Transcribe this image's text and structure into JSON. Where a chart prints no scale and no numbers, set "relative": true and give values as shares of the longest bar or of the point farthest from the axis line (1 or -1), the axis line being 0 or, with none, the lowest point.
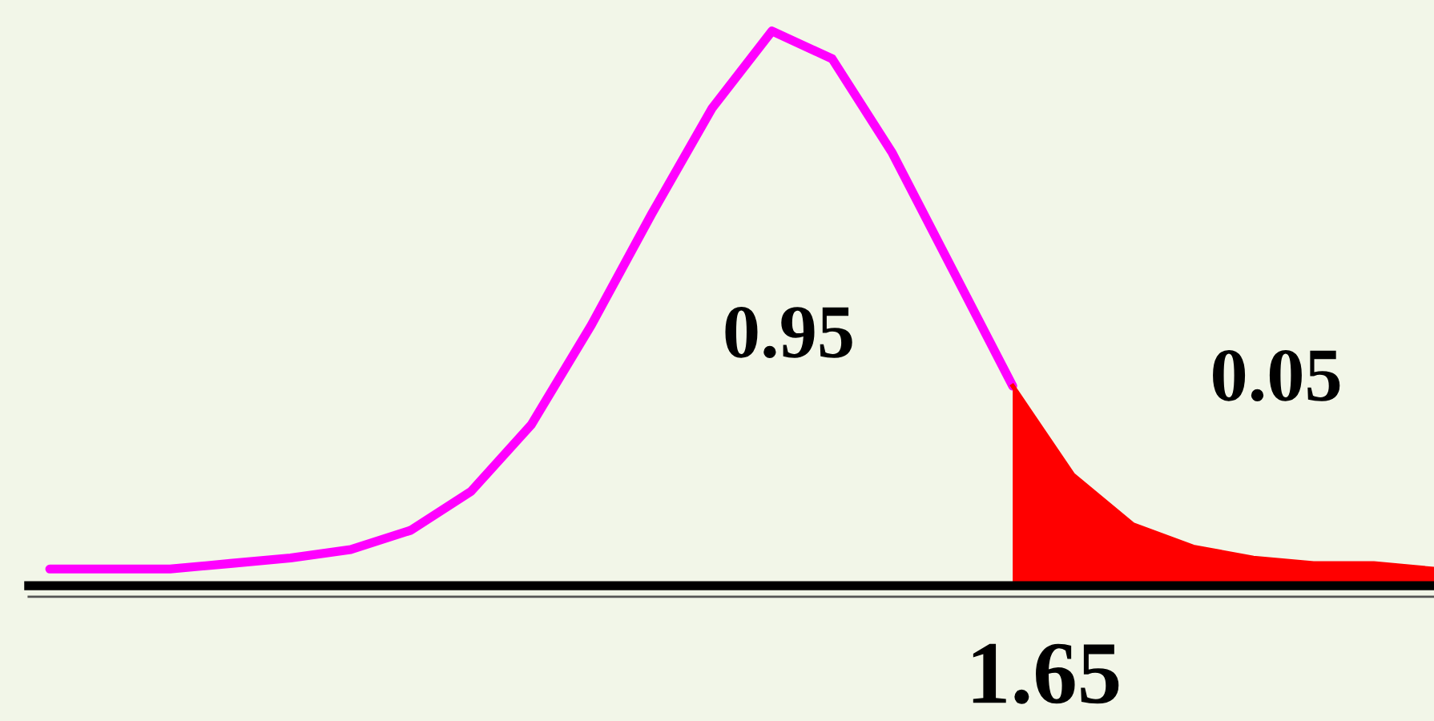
{
  "chart_data": {
    "type": "line",
    "relative": true,
    "categories": [
      null,
      null,
      null,
      null,
      null,
      null,
      null,
      null,
      null,
      null,
      null,
      null,
      null,
      null,
      null,
      null,
      null,
      null,
      null,
      null,
      null,
      null,
      null,
      null
    ],
    "grid": false,
    "legend": false,
    "series": [
      {
        "color": "#ff00ff",
        "values": [
          0.03,
          0.03,
          0.03,
          0.04,
          0.05,
          0.065,
          0.1,
          0.17,
          0.29,
          0.47,
          0.67,
          0.86,
          1.0,
          0.95,
          0.78,
          0.57,
          0.36,
          null,
          null,
          null,
          null,
          null,
          null,
          null
        ]
      },
      {
        "type": "area",
        "color": "#ff0000",
        "values": [
          null,
          null,
          null,
          null,
          null,
          null,
          null,
          null,
          null,
          null,
          null,
          null,
          null,
          null,
          null,
          null,
          0.36,
          0.2,
          0.11,
          0.07,
          0.05,
          0.04,
          0.04,
          0.03
        ]
      }
    ],
    "annotations": [
      "0.95",
      "0.05",
      "1.65"
    ]
  }
}
